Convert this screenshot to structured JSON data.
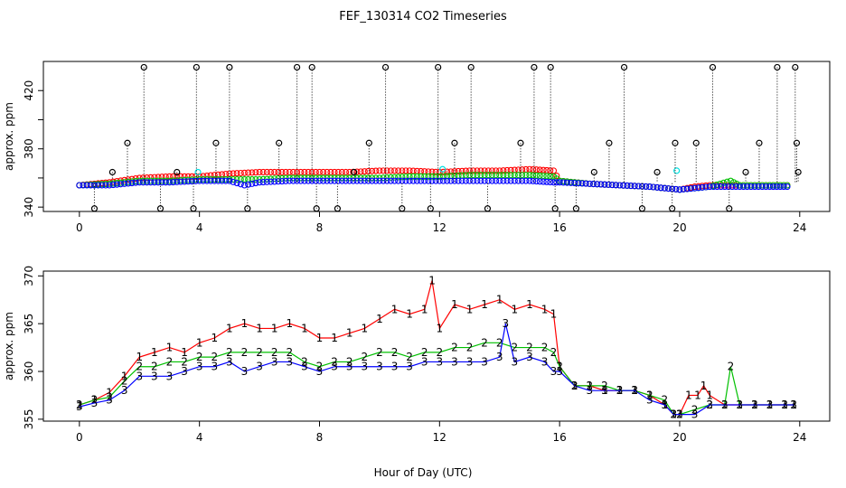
{
  "title": "FEF_130314  CO2 Timeseries",
  "xlabel": "Hour of Day (UTC)",
  "colors": {
    "red": "#ff0000",
    "green": "#00c000",
    "blue": "#0000ff",
    "black": "#000000",
    "cyan": "#00e0e0"
  },
  "chart_data": [
    {
      "type": "scatter",
      "title": "FEF_130314  CO2 Timeseries",
      "ylabel": "approx. ppm",
      "xlim": [
        -1.2,
        25
      ],
      "ylim": [
        337,
        440
      ],
      "xticks": [
        0,
        4,
        8,
        12,
        16,
        20,
        24
      ],
      "yticks": [
        340,
        360,
        380,
        400,
        420
      ],
      "ytick_labels": [
        "340",
        "",
        "380",
        "",
        "420"
      ],
      "grid": false,
      "series": [
        {
          "color": "red",
          "x": [
            0,
            1,
            2,
            3,
            4,
            5,
            6,
            7,
            8,
            9,
            10,
            11,
            12,
            13,
            14,
            15,
            15.8,
            16,
            17,
            18,
            19,
            20,
            20.5,
            21,
            22,
            23,
            23.7
          ],
          "y": [
            355,
            357,
            360,
            361,
            361,
            363,
            364,
            364,
            364,
            364,
            365,
            365,
            364,
            365,
            365,
            366,
            365,
            358,
            356,
            355,
            354,
            352,
            354,
            355,
            355,
            355,
            355
          ]
        },
        {
          "color": "green",
          "x": [
            0,
            1,
            2,
            3,
            4,
            5,
            6,
            7,
            8,
            9,
            10,
            11,
            12,
            13,
            14,
            15,
            15.8,
            16,
            17,
            18,
            19,
            20,
            21,
            21.7,
            22,
            23,
            23.7
          ],
          "y": [
            355,
            356,
            358,
            358,
            359,
            359,
            359,
            360,
            360,
            360,
            360,
            361,
            361,
            362,
            362,
            362,
            361,
            358,
            356,
            355,
            354,
            352,
            354,
            358,
            355,
            355,
            355
          ]
        },
        {
          "color": "blue",
          "x": [
            0,
            1,
            2,
            3,
            4,
            5,
            5.5,
            6,
            7,
            8,
            9,
            10,
            11,
            12,
            13,
            14,
            15,
            15.8,
            16,
            17,
            18,
            19,
            20,
            21,
            22,
            23,
            23.7
          ],
          "y": [
            355,
            355,
            357,
            357,
            358,
            358,
            355,
            357,
            358,
            358,
            358,
            358,
            358,
            358,
            358,
            358,
            358,
            357,
            357,
            356,
            355,
            354,
            352,
            354,
            354,
            354,
            354
          ]
        },
        {
          "color": "cyan",
          "x": [
            3.95,
            12.1,
            19.9
          ],
          "y": [
            364,
            366,
            365
          ]
        },
        {
          "color": "black",
          "x": [
            0.5,
            1.1,
            1.6,
            2.15,
            2.7,
            3.25,
            3.8,
            3.9,
            4.55,
            5.0,
            5.6,
            6.65,
            7.25,
            7.75,
            7.9,
            8.6,
            9.15,
            9.65,
            10.2,
            10.75,
            11.7,
            11.95,
            12.5,
            13.05,
            13.6,
            14.7,
            15.15,
            15.7,
            15.85,
            16.55,
            17.15,
            17.65,
            18.15,
            18.75,
            19.25,
            19.75,
            19.85,
            20.55,
            21.1,
            21.65,
            22.2,
            22.65,
            23.25,
            23.85,
            23.9,
            23.95
          ],
          "y": [
            339,
            364,
            384,
            436,
            339,
            364,
            339,
            436,
            384,
            436,
            339,
            384,
            436,
            436,
            339,
            339,
            364,
            384,
            436,
            339,
            339,
            436,
            384,
            436,
            339,
            384,
            436,
            436,
            339,
            339,
            364,
            384,
            436,
            339,
            364,
            339,
            384,
            384,
            436,
            339,
            364,
            384,
            436,
            436,
            384,
            364
          ]
        }
      ]
    },
    {
      "type": "line",
      "ylabel": "approx. ppm",
      "xlim": [
        -1.2,
        25
      ],
      "ylim": [
        354.8,
        370.5
      ],
      "xticks": [
        0,
        4,
        8,
        12,
        16,
        20,
        24
      ],
      "yticks": [
        355,
        360,
        365,
        370
      ],
      "grid": false,
      "series": [
        {
          "label": "1",
          "color": "red",
          "x": [
            0,
            0.5,
            1,
            1.5,
            2,
            2.5,
            3,
            3.5,
            4,
            4.5,
            5,
            5.5,
            6,
            6.5,
            7,
            7.5,
            8,
            8.5,
            9,
            9.5,
            10,
            10.5,
            11,
            11.5,
            11.75,
            12,
            12.5,
            13,
            13.5,
            14,
            14.5,
            15,
            15.5,
            15.8,
            16,
            16.5,
            17,
            17.5,
            18,
            18.5,
            19,
            19.5,
            19.8,
            20,
            20.3,
            20.6,
            20.8,
            21,
            21.5,
            22,
            22.5,
            23,
            23.5,
            23.8
          ],
          "y": [
            356.5,
            357,
            357.8,
            359.5,
            361.5,
            362,
            362.5,
            362,
            363,
            363.5,
            364.5,
            365,
            364.5,
            364.5,
            365,
            364.5,
            363.5,
            363.5,
            364,
            364.5,
            365.5,
            366.5,
            366,
            366.5,
            369.5,
            364.5,
            367,
            366.5,
            367,
            367.5,
            366.5,
            367,
            366.5,
            366,
            360.5,
            358.5,
            358.5,
            358,
            358,
            358,
            357.5,
            356.5,
            355.5,
            355.5,
            357.5,
            357.5,
            358.5,
            357.5,
            356.5,
            356.5,
            356.5,
            356.5,
            356.5,
            356.5
          ]
        },
        {
          "label": "2",
          "color": "green",
          "x": [
            0,
            0.5,
            1,
            1.5,
            2,
            2.5,
            3,
            3.5,
            4,
            4.5,
            5,
            5.5,
            6,
            6.5,
            7,
            7.5,
            8,
            8.5,
            9,
            9.5,
            10,
            10.5,
            11,
            11.5,
            12,
            12.5,
            13,
            13.5,
            14,
            14.5,
            15,
            15.5,
            15.8,
            16,
            16.5,
            17,
            17.5,
            18,
            18.5,
            19,
            19.5,
            19.8,
            20,
            20.5,
            21,
            21.5,
            21.7,
            22,
            22.5,
            23,
            23.5,
            23.8
          ],
          "y": [
            356.5,
            357,
            357.3,
            359,
            360.5,
            360.5,
            361,
            361,
            361.5,
            361.5,
            362,
            362,
            362,
            362,
            362,
            361,
            360.5,
            361,
            361,
            361.5,
            362,
            362,
            361.5,
            362,
            362,
            362.5,
            362.5,
            363,
            363,
            362.5,
            362.5,
            362.5,
            362,
            360.5,
            358.5,
            358.5,
            358.5,
            358,
            358,
            357.5,
            357,
            355.5,
            355.5,
            356,
            356.5,
            356.5,
            360.5,
            356.5,
            356.5,
            356.5,
            356.5,
            356.5
          ]
        },
        {
          "label": "3",
          "color": "blue",
          "x": [
            0,
            0.5,
            1,
            1.5,
            2,
            2.5,
            3,
            3.5,
            4,
            4.5,
            5,
            5.5,
            6,
            6.5,
            7,
            7.5,
            8,
            8.5,
            9,
            9.5,
            10,
            10.5,
            11,
            11.5,
            12,
            12.5,
            13,
            13.5,
            14,
            14.2,
            14.5,
            15,
            15.5,
            15.8,
            16,
            16.5,
            17,
            17.5,
            18,
            18.5,
            19,
            19.5,
            19.8,
            20,
            20.5,
            21,
            21.5,
            22,
            22.5,
            23,
            23.5,
            23.8
          ],
          "y": [
            356.3,
            356.7,
            357,
            358,
            359.5,
            359.5,
            359.5,
            360,
            360.5,
            360.5,
            361,
            360,
            360.5,
            361,
            361,
            360.5,
            360,
            360.5,
            360.5,
            360.5,
            360.5,
            360.5,
            360.5,
            361,
            361,
            361,
            361,
            361,
            361.5,
            365,
            361,
            361.5,
            361,
            360,
            360,
            358.5,
            358,
            358,
            358,
            358,
            357,
            356.5,
            355.5,
            355.5,
            355.5,
            356.5,
            356.5,
            356.5,
            356.5,
            356.5,
            356.5,
            356.5
          ]
        }
      ]
    }
  ]
}
